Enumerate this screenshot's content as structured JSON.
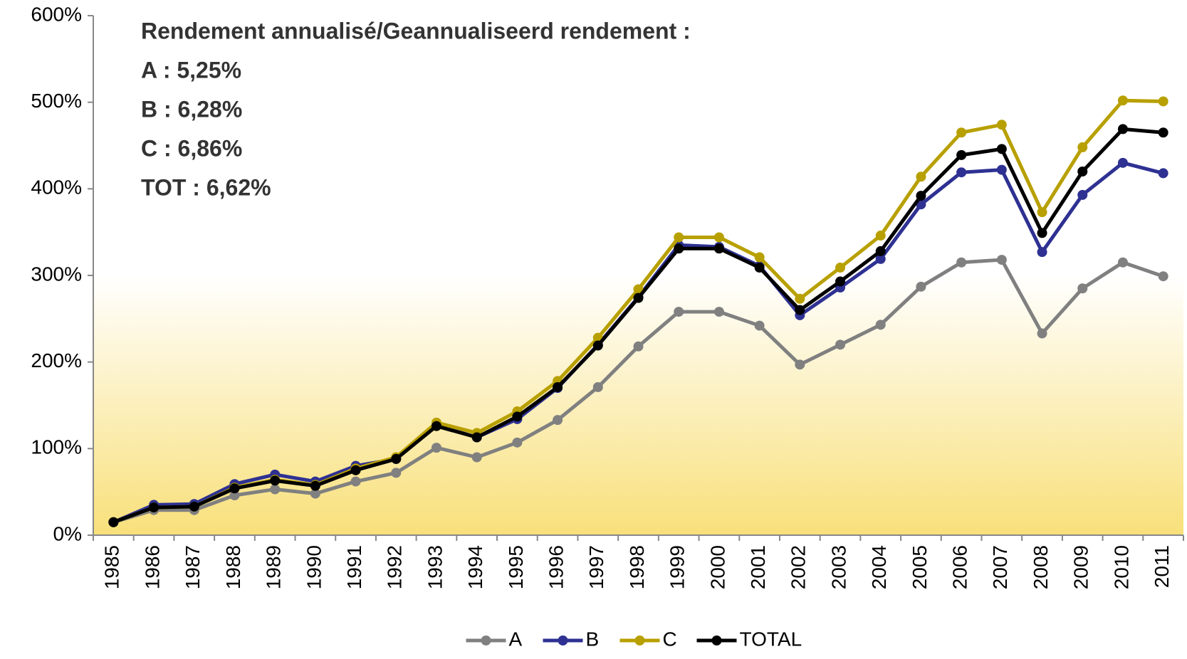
{
  "chart_data": {
    "type": "line",
    "annotations": [
      "Rendement annualisé/Geannualiseerd rendement :",
      "A : 5,25%",
      "B : 6,28%",
      "C : 6,86%",
      "TOT : 6,62%"
    ],
    "categories": [
      "1985",
      "1986",
      "1987",
      "1988",
      "1989",
      "1990",
      "1991",
      "1992",
      "1993",
      "1994",
      "1995",
      "1996",
      "1997",
      "1998",
      "1999",
      "2000",
      "2001",
      "2002",
      "2003",
      "2004",
      "2005",
      "2006",
      "2007",
      "2008",
      "2009",
      "2010",
      "2011"
    ],
    "series": [
      {
        "name": "A",
        "color": "#808080",
        "values": [
          15,
          29,
          29,
          46,
          53,
          48,
          62,
          72,
          101,
          90,
          107,
          133,
          171,
          218,
          258,
          258,
          242,
          197,
          220,
          243,
          287,
          315,
          318,
          233,
          285,
          315,
          299
        ]
      },
      {
        "name": "B",
        "color": "#2e3192",
        "values": [
          15,
          35,
          36,
          59,
          70,
          62,
          80,
          88,
          127,
          113,
          134,
          170,
          220,
          275,
          335,
          333,
          311,
          254,
          286,
          319,
          382,
          419,
          422,
          327,
          393,
          430,
          418
        ]
      },
      {
        "name": "C",
        "color": "#b8a000",
        "values": [
          15,
          32,
          33,
          55,
          64,
          58,
          77,
          90,
          130,
          118,
          143,
          178,
          228,
          284,
          344,
          344,
          321,
          273,
          309,
          346,
          414,
          465,
          474,
          373,
          448,
          502,
          501
        ]
      },
      {
        "name": "TOTAL",
        "color": "#000000",
        "values": [
          15,
          32,
          33,
          54,
          63,
          57,
          75,
          88,
          126,
          113,
          137,
          171,
          219,
          274,
          331,
          331,
          309,
          260,
          293,
          328,
          392,
          439,
          446,
          349,
          420,
          469,
          465
        ]
      }
    ],
    "ylim": [
      0,
      600
    ],
    "yticks": [
      {
        "value": 0,
        "label": "0%"
      },
      {
        "value": 100,
        "label": "100%"
      },
      {
        "value": 200,
        "label": "200%"
      },
      {
        "value": 300,
        "label": "300%"
      },
      {
        "value": 400,
        "label": "400%"
      },
      {
        "value": 500,
        "label": "500%"
      },
      {
        "value": 600,
        "label": "600%"
      }
    ],
    "legend": "bottom"
  }
}
